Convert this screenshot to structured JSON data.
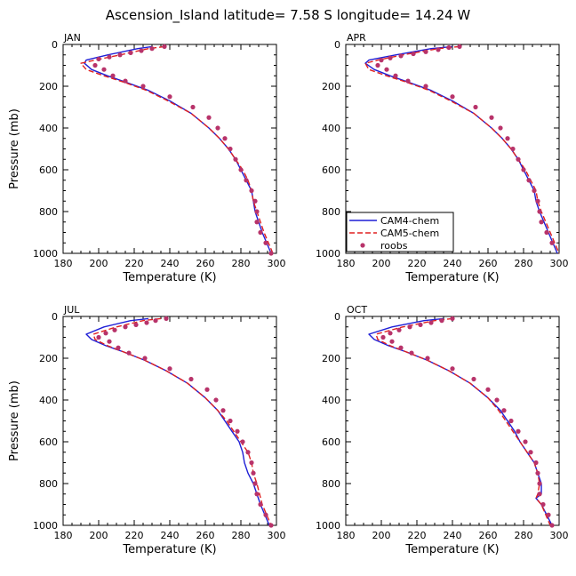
{
  "title": "Ascension_Island  latitude= 7.58 S longitude= 14.24 W",
  "colors": {
    "cam4": "#1f1fd6",
    "cam5": "#e02020",
    "roobs": "#b8336a",
    "axes": "#000000"
  },
  "legend": {
    "location": "lower-left of APR panel",
    "entries": [
      {
        "key": "cam4",
        "label": "CAM4-chem",
        "style": "solid-line"
      },
      {
        "key": "cam5",
        "label": "CAM5-chem",
        "style": "dashed-line"
      },
      {
        "key": "roobs",
        "label": "roobs",
        "style": "dot"
      }
    ]
  },
  "chart_data": [
    {
      "type": "line",
      "panel": "JAN",
      "xlabel": "Temperature (K)",
      "ylabel": "Pressure (mb)",
      "xlim": [
        180,
        300
      ],
      "ylim": [
        1000,
        0
      ],
      "xticks": [
        180,
        200,
        220,
        240,
        260,
        280,
        300
      ],
      "yticks": [
        0,
        200,
        400,
        600,
        800,
        1000
      ],
      "show_ylabel": true,
      "show_legend": false,
      "series": [
        {
          "key": "cam4",
          "name": "CAM4-chem",
          "x": [
            230,
            222,
            205,
            193,
            192,
            196,
            205,
            215,
            228,
            240,
            252,
            262,
            268,
            273,
            277,
            280,
            283,
            286,
            287,
            288,
            292,
            297
          ],
          "y": [
            10,
            20,
            50,
            75,
            90,
            120,
            150,
            180,
            220,
            270,
            330,
            400,
            450,
            500,
            550,
            600,
            650,
            700,
            750,
            800,
            900,
            1000
          ]
        },
        {
          "key": "cam5",
          "name": "CAM5-chem",
          "x": [
            237,
            228,
            212,
            198,
            190,
            193,
            203,
            214,
            227,
            239,
            252,
            262,
            268,
            273,
            277,
            281,
            284,
            286,
            287,
            289,
            293,
            298
          ],
          "y": [
            10,
            20,
            50,
            75,
            90,
            120,
            150,
            180,
            220,
            270,
            330,
            400,
            450,
            500,
            550,
            600,
            650,
            700,
            750,
            800,
            900,
            1000
          ]
        },
        {
          "key": "roobs",
          "name": "roobs",
          "x": [
            237,
            230,
            224,
            218,
            212,
            206,
            200,
            198,
            203,
            208,
            215,
            225,
            240,
            253,
            262,
            267,
            271,
            274,
            277,
            280,
            283,
            286,
            288,
            289,
            289,
            291,
            294,
            297
          ],
          "y": [
            10,
            20,
            30,
            40,
            50,
            60,
            70,
            100,
            120,
            150,
            175,
            200,
            250,
            300,
            350,
            400,
            450,
            500,
            550,
            600,
            650,
            700,
            750,
            800,
            850,
            900,
            950,
            1000
          ]
        }
      ]
    },
    {
      "type": "line",
      "panel": "APR",
      "xlabel": "Temperature (K)",
      "ylabel": "",
      "xlim": [
        180,
        300
      ],
      "ylim": [
        1000,
        0
      ],
      "xticks": [
        180,
        200,
        220,
        240,
        260,
        280,
        300
      ],
      "yticks": [
        0,
        200,
        400,
        600,
        800,
        1000
      ],
      "show_ylabel": false,
      "show_legend": true,
      "series": [
        {
          "key": "cam4",
          "name": "CAM4-chem",
          "x": [
            240,
            228,
            208,
            193,
            191,
            196,
            205,
            215,
            228,
            240,
            252,
            262,
            268,
            273,
            277,
            280,
            283,
            286,
            287,
            289,
            294,
            299
          ],
          "y": [
            10,
            20,
            50,
            75,
            90,
            120,
            150,
            180,
            220,
            270,
            330,
            400,
            450,
            500,
            550,
            600,
            650,
            700,
            750,
            800,
            900,
            1000
          ]
        },
        {
          "key": "cam5",
          "name": "CAM5-chem",
          "x": [
            244,
            232,
            212,
            198,
            191,
            193,
            203,
            214,
            227,
            239,
            252,
            262,
            268,
            273,
            277,
            281,
            284,
            287,
            288,
            290,
            295,
            300
          ],
          "y": [
            10,
            20,
            50,
            75,
            90,
            120,
            150,
            180,
            220,
            270,
            330,
            400,
            450,
            500,
            550,
            600,
            650,
            700,
            750,
            800,
            900,
            1000
          ]
        },
        {
          "key": "roobs",
          "name": "roobs",
          "x": [
            244,
            238,
            232,
            225,
            218,
            211,
            205,
            200,
            198,
            203,
            208,
            215,
            225,
            240,
            253,
            262,
            267,
            271,
            274,
            277,
            280,
            283,
            286,
            288,
            289,
            290,
            293,
            296
          ],
          "y": [
            10,
            15,
            25,
            35,
            45,
            55,
            65,
            75,
            100,
            120,
            150,
            175,
            200,
            250,
            300,
            350,
            400,
            450,
            500,
            550,
            600,
            650,
            700,
            750,
            800,
            850,
            900,
            950
          ]
        }
      ]
    },
    {
      "type": "line",
      "panel": "JUL",
      "xlabel": "Temperature (K)",
      "ylabel": "Pressure (mb)",
      "xlim": [
        180,
        300
      ],
      "ylim": [
        1000,
        0
      ],
      "xticks": [
        180,
        200,
        220,
        240,
        260,
        280,
        300
      ],
      "yticks": [
        0,
        200,
        400,
        600,
        800,
        1000
      ],
      "show_ylabel": true,
      "show_legend": false,
      "series": [
        {
          "key": "cam4",
          "name": "CAM4-chem",
          "x": [
            228,
            218,
            203,
            193,
            196,
            204,
            214,
            226,
            238,
            250,
            260,
            267,
            271,
            275,
            279,
            281,
            282,
            284,
            287,
            291,
            296
          ],
          "y": [
            10,
            20,
            50,
            85,
            110,
            140,
            170,
            210,
            260,
            320,
            390,
            450,
            500,
            550,
            600,
            650,
            700,
            750,
            800,
            900,
            1000
          ]
        },
        {
          "key": "cam5",
          "name": "CAM5-chem",
          "x": [
            235,
            225,
            210,
            197,
            198,
            205,
            214,
            226,
            238,
            250,
            260,
            267,
            272,
            276,
            280,
            284,
            286,
            287,
            289,
            292,
            297
          ],
          "y": [
            10,
            20,
            50,
            85,
            110,
            140,
            170,
            210,
            260,
            320,
            390,
            450,
            500,
            550,
            600,
            650,
            700,
            750,
            800,
            900,
            1000
          ]
        },
        {
          "key": "roobs",
          "name": "roobs",
          "x": [
            238,
            232,
            227,
            221,
            215,
            209,
            204,
            200,
            206,
            211,
            217,
            226,
            240,
            252,
            261,
            266,
            270,
            274,
            278,
            281,
            284,
            286,
            287,
            288,
            289,
            291,
            294,
            297
          ],
          "y": [
            10,
            20,
            30,
            40,
            50,
            65,
            80,
            100,
            120,
            150,
            175,
            200,
            250,
            300,
            350,
            400,
            450,
            500,
            550,
            600,
            650,
            700,
            750,
            800,
            850,
            900,
            950,
            1000
          ]
        }
      ]
    },
    {
      "type": "line",
      "panel": "OCT",
      "xlabel": "Temperature (K)",
      "ylabel": "",
      "xlim": [
        180,
        300
      ],
      "ylim": [
        1000,
        0
      ],
      "xticks": [
        180,
        200,
        220,
        240,
        260,
        280,
        300
      ],
      "yticks": [
        0,
        200,
        400,
        600,
        800,
        1000
      ],
      "show_ylabel": false,
      "show_legend": false,
      "series": [
        {
          "key": "cam4",
          "name": "CAM4-chem",
          "x": [
            235,
            224,
            206,
            193,
            196,
            204,
            214,
            226,
            238,
            250,
            260,
            267,
            271,
            275,
            278,
            282,
            286,
            288,
            290,
            290,
            287,
            290,
            296
          ],
          "y": [
            10,
            20,
            50,
            85,
            110,
            140,
            170,
            210,
            260,
            320,
            390,
            450,
            500,
            550,
            600,
            650,
            700,
            750,
            800,
            850,
            870,
            900,
            1000
          ]
        },
        {
          "key": "cam5",
          "name": "CAM5-chem",
          "x": [
            240,
            230,
            212,
            197,
            198,
            205,
            214,
            226,
            238,
            250,
            260,
            266,
            270,
            274,
            278,
            282,
            286,
            288,
            289,
            288,
            287,
            290,
            295
          ],
          "y": [
            10,
            20,
            50,
            85,
            110,
            140,
            170,
            210,
            260,
            320,
            390,
            450,
            500,
            550,
            600,
            650,
            700,
            750,
            800,
            850,
            870,
            900,
            1000
          ]
        },
        {
          "key": "roobs",
          "name": "roobs",
          "x": [
            240,
            234,
            228,
            222,
            216,
            210,
            205,
            201,
            206,
            211,
            217,
            226,
            240,
            252,
            260,
            265,
            269,
            273,
            277,
            281,
            284,
            287,
            288,
            289,
            289,
            291,
            294,
            296
          ],
          "y": [
            10,
            20,
            30,
            40,
            50,
            65,
            80,
            100,
            120,
            150,
            175,
            200,
            250,
            300,
            350,
            400,
            450,
            500,
            550,
            600,
            650,
            700,
            750,
            800,
            850,
            900,
            950,
            1000
          ]
        }
      ]
    }
  ]
}
